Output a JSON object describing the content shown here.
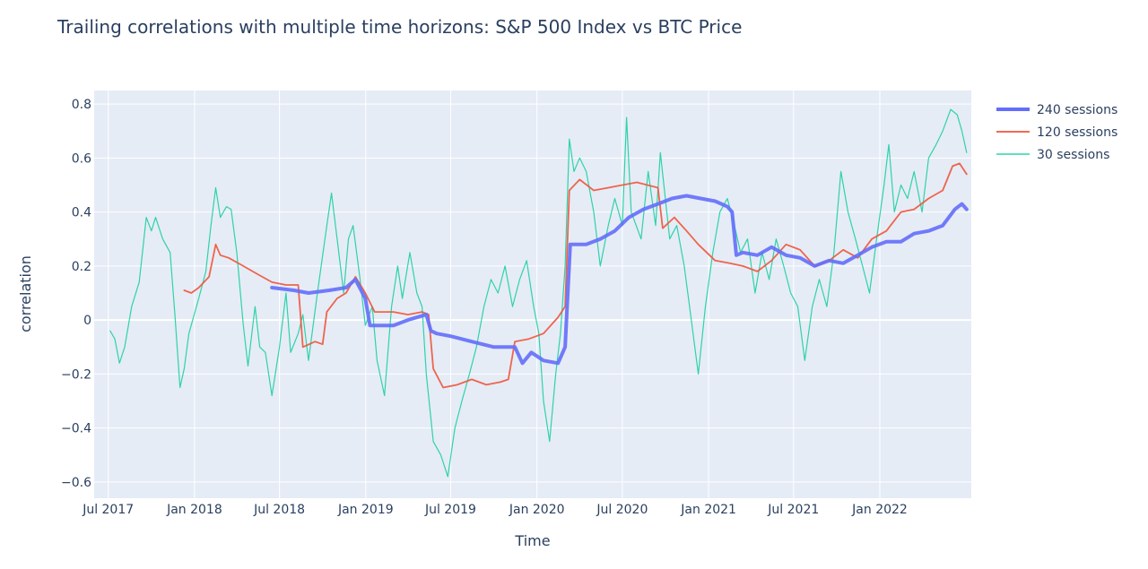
{
  "chart_data": {
    "type": "line",
    "title": "Trailing correlations with multiple time horizons: S&P 500 Index vs BTC Price",
    "xlabel": "Time",
    "ylabel": "correlation",
    "xlim": [
      "2017-06-01",
      "2022-07-15"
    ],
    "ylim": [
      -0.66,
      0.85
    ],
    "x_ticks": [
      {
        "date": "2017-07-01",
        "label": "Jul 2017"
      },
      {
        "date": "2018-01-01",
        "label": "Jan 2018"
      },
      {
        "date": "2018-07-01",
        "label": "Jul 2018"
      },
      {
        "date": "2019-01-01",
        "label": "Jan 2019"
      },
      {
        "date": "2019-07-01",
        "label": "Jul 2019"
      },
      {
        "date": "2020-01-01",
        "label": "Jan 2020"
      },
      {
        "date": "2020-07-01",
        "label": "Jul 2020"
      },
      {
        "date": "2021-01-01",
        "label": "Jan 2021"
      },
      {
        "date": "2021-07-01",
        "label": "Jul 2021"
      },
      {
        "date": "2022-01-01",
        "label": "Jan 2022"
      }
    ],
    "y_ticks": [
      {
        "value": 0.8,
        "label": "0.8"
      },
      {
        "value": 0.6,
        "label": "0.6"
      },
      {
        "value": 0.4,
        "label": "0.4"
      },
      {
        "value": 0.2,
        "label": "0.2"
      },
      {
        "value": 0,
        "label": "0"
      },
      {
        "value": -0.2,
        "label": "−0.2"
      },
      {
        "value": -0.4,
        "label": "−0.4"
      },
      {
        "value": -0.6,
        "label": "−0.6"
      }
    ],
    "grid": true,
    "legend_position": "top-right",
    "colors": {
      "plot_bg": "#e5ecf6",
      "grid": "#ffffff",
      "text": "#2a3f5f"
    },
    "series": [
      {
        "name": "240 sessions",
        "color": "#636efa",
        "width": "thick",
        "points": [
          [
            "2018-06-15",
            0.12
          ],
          [
            "2018-08-01",
            0.11
          ],
          [
            "2018-09-01",
            0.1
          ],
          [
            "2018-10-15",
            0.11
          ],
          [
            "2018-11-20",
            0.12
          ],
          [
            "2018-12-10",
            0.15
          ],
          [
            "2018-12-31",
            0.08
          ],
          [
            "2019-01-10",
            -0.02
          ],
          [
            "2019-03-01",
            -0.02
          ],
          [
            "2019-04-01",
            0.0
          ],
          [
            "2019-05-10",
            0.02
          ],
          [
            "2019-05-20",
            -0.04
          ],
          [
            "2019-06-01",
            -0.05
          ],
          [
            "2019-07-01",
            -0.06
          ],
          [
            "2019-08-15",
            -0.08
          ],
          [
            "2019-10-01",
            -0.1
          ],
          [
            "2019-11-15",
            -0.1
          ],
          [
            "2019-12-01",
            -0.16
          ],
          [
            "2019-12-20",
            -0.12
          ],
          [
            "2020-01-15",
            -0.15
          ],
          [
            "2020-02-15",
            -0.16
          ],
          [
            "2020-03-01",
            -0.1
          ],
          [
            "2020-03-12",
            0.28
          ],
          [
            "2020-04-15",
            0.28
          ],
          [
            "2020-05-15",
            0.3
          ],
          [
            "2020-06-15",
            0.33
          ],
          [
            "2020-07-15",
            0.38
          ],
          [
            "2020-08-15",
            0.41
          ],
          [
            "2020-09-15",
            0.43
          ],
          [
            "2020-10-15",
            0.45
          ],
          [
            "2020-11-15",
            0.46
          ],
          [
            "2020-12-15",
            0.45
          ],
          [
            "2021-01-15",
            0.44
          ],
          [
            "2021-02-10",
            0.42
          ],
          [
            "2021-02-20",
            0.4
          ],
          [
            "2021-03-01",
            0.24
          ],
          [
            "2021-03-15",
            0.25
          ],
          [
            "2021-04-15",
            0.24
          ],
          [
            "2021-05-15",
            0.27
          ],
          [
            "2021-06-15",
            0.24
          ],
          [
            "2021-07-15",
            0.23
          ],
          [
            "2021-08-15",
            0.2
          ],
          [
            "2021-09-15",
            0.22
          ],
          [
            "2021-10-15",
            0.21
          ],
          [
            "2021-11-15",
            0.24
          ],
          [
            "2021-12-15",
            0.27
          ],
          [
            "2022-01-15",
            0.29
          ],
          [
            "2022-02-15",
            0.29
          ],
          [
            "2022-03-15",
            0.32
          ],
          [
            "2022-04-15",
            0.33
          ],
          [
            "2022-05-15",
            0.35
          ],
          [
            "2022-06-10",
            0.41
          ],
          [
            "2022-06-25",
            0.43
          ],
          [
            "2022-07-05",
            0.41
          ]
        ]
      },
      {
        "name": "120 sessions",
        "color": "#ef553b",
        "width": "thin",
        "points": [
          [
            "2017-12-10",
            0.11
          ],
          [
            "2017-12-25",
            0.1
          ],
          [
            "2018-01-10",
            0.12
          ],
          [
            "2018-02-01",
            0.16
          ],
          [
            "2018-02-15",
            0.28
          ],
          [
            "2018-02-25",
            0.24
          ],
          [
            "2018-03-15",
            0.23
          ],
          [
            "2018-04-15",
            0.2
          ],
          [
            "2018-05-15",
            0.17
          ],
          [
            "2018-06-15",
            0.14
          ],
          [
            "2018-07-15",
            0.13
          ],
          [
            "2018-08-10",
            0.13
          ],
          [
            "2018-08-20",
            -0.1
          ],
          [
            "2018-09-15",
            -0.08
          ],
          [
            "2018-10-01",
            -0.09
          ],
          [
            "2018-10-10",
            0.03
          ],
          [
            "2018-11-01",
            0.08
          ],
          [
            "2018-11-20",
            0.1
          ],
          [
            "2018-12-10",
            0.16
          ],
          [
            "2018-12-31",
            0.1
          ],
          [
            "2019-01-20",
            0.03
          ],
          [
            "2019-03-01",
            0.03
          ],
          [
            "2019-04-01",
            0.02
          ],
          [
            "2019-05-01",
            0.03
          ],
          [
            "2019-05-15",
            0.02
          ],
          [
            "2019-05-25",
            -0.18
          ],
          [
            "2019-06-15",
            -0.25
          ],
          [
            "2019-07-15",
            -0.24
          ],
          [
            "2019-08-15",
            -0.22
          ],
          [
            "2019-09-15",
            -0.24
          ],
          [
            "2019-10-15",
            -0.23
          ],
          [
            "2019-11-01",
            -0.22
          ],
          [
            "2019-11-15",
            -0.08
          ],
          [
            "2019-12-15",
            -0.07
          ],
          [
            "2020-01-15",
            -0.05
          ],
          [
            "2020-02-15",
            0.01
          ],
          [
            "2020-03-01",
            0.05
          ],
          [
            "2020-03-10",
            0.48
          ],
          [
            "2020-04-01",
            0.52
          ],
          [
            "2020-05-01",
            0.48
          ],
          [
            "2020-06-01",
            0.49
          ],
          [
            "2020-07-01",
            0.5
          ],
          [
            "2020-08-01",
            0.51
          ],
          [
            "2020-09-15",
            0.49
          ],
          [
            "2020-09-25",
            0.34
          ],
          [
            "2020-10-20",
            0.38
          ],
          [
            "2020-11-15",
            0.33
          ],
          [
            "2020-12-10",
            0.28
          ],
          [
            "2021-01-15",
            0.22
          ],
          [
            "2021-02-15",
            0.21
          ],
          [
            "2021-03-15",
            0.2
          ],
          [
            "2021-04-15",
            0.18
          ],
          [
            "2021-05-15",
            0.22
          ],
          [
            "2021-06-15",
            0.28
          ],
          [
            "2021-07-15",
            0.26
          ],
          [
            "2021-08-15",
            0.2
          ],
          [
            "2021-09-15",
            0.22
          ],
          [
            "2021-10-15",
            0.26
          ],
          [
            "2021-11-15",
            0.23
          ],
          [
            "2021-12-15",
            0.3
          ],
          [
            "2022-01-15",
            0.33
          ],
          [
            "2022-02-15",
            0.4
          ],
          [
            "2022-03-15",
            0.41
          ],
          [
            "2022-04-15",
            0.45
          ],
          [
            "2022-05-15",
            0.48
          ],
          [
            "2022-06-05",
            0.57
          ],
          [
            "2022-06-20",
            0.58
          ],
          [
            "2022-07-05",
            0.54
          ]
        ]
      },
      {
        "name": "30 sessions",
        "color": "#00cc96",
        "width": "hair",
        "points": [
          [
            "2017-07-05",
            -0.04
          ],
          [
            "2017-07-15",
            -0.07
          ],
          [
            "2017-07-25",
            -0.16
          ],
          [
            "2017-08-05",
            -0.1
          ],
          [
            "2017-08-20",
            0.05
          ],
          [
            "2017-09-05",
            0.14
          ],
          [
            "2017-09-20",
            0.38
          ],
          [
            "2017-10-01",
            0.33
          ],
          [
            "2017-10-10",
            0.38
          ],
          [
            "2017-10-25",
            0.3
          ],
          [
            "2017-11-10",
            0.25
          ],
          [
            "2017-11-20",
            0.02
          ],
          [
            "2017-12-01",
            -0.25
          ],
          [
            "2017-12-10",
            -0.18
          ],
          [
            "2017-12-20",
            -0.05
          ],
          [
            "2018-01-10",
            0.08
          ],
          [
            "2018-01-25",
            0.18
          ],
          [
            "2018-02-05",
            0.35
          ],
          [
            "2018-02-15",
            0.49
          ],
          [
            "2018-02-25",
            0.38
          ],
          [
            "2018-03-10",
            0.42
          ],
          [
            "2018-03-20",
            0.41
          ],
          [
            "2018-04-01",
            0.25
          ],
          [
            "2018-04-15",
            -0.02
          ],
          [
            "2018-04-25",
            -0.17
          ],
          [
            "2018-05-10",
            0.05
          ],
          [
            "2018-05-20",
            -0.1
          ],
          [
            "2018-06-01",
            -0.12
          ],
          [
            "2018-06-15",
            -0.28
          ],
          [
            "2018-07-01",
            -0.1
          ],
          [
            "2018-07-15",
            0.1
          ],
          [
            "2018-07-25",
            -0.12
          ],
          [
            "2018-08-10",
            -0.05
          ],
          [
            "2018-08-20",
            0.02
          ],
          [
            "2018-09-01",
            -0.15
          ],
          [
            "2018-09-20",
            0.1
          ],
          [
            "2018-10-10",
            0.35
          ],
          [
            "2018-10-20",
            0.47
          ],
          [
            "2018-11-01",
            0.3
          ],
          [
            "2018-11-15",
            0.1
          ],
          [
            "2018-11-25",
            0.3
          ],
          [
            "2018-12-05",
            0.35
          ],
          [
            "2018-12-20",
            0.15
          ],
          [
            "2018-12-31",
            -0.02
          ],
          [
            "2019-01-15",
            0.05
          ],
          [
            "2019-01-25",
            -0.15
          ],
          [
            "2019-02-10",
            -0.28
          ],
          [
            "2019-02-25",
            0.05
          ],
          [
            "2019-03-10",
            0.2
          ],
          [
            "2019-03-20",
            0.08
          ],
          [
            "2019-04-05",
            0.25
          ],
          [
            "2019-04-20",
            0.1
          ],
          [
            "2019-05-01",
            0.05
          ],
          [
            "2019-05-10",
            -0.2
          ],
          [
            "2019-05-25",
            -0.45
          ],
          [
            "2019-06-10",
            -0.5
          ],
          [
            "2019-06-25",
            -0.58
          ],
          [
            "2019-07-10",
            -0.4
          ],
          [
            "2019-07-25",
            -0.3
          ],
          [
            "2019-08-10",
            -0.2
          ],
          [
            "2019-08-25",
            -0.1
          ],
          [
            "2019-09-10",
            0.05
          ],
          [
            "2019-09-25",
            0.15
          ],
          [
            "2019-10-10",
            0.1
          ],
          [
            "2019-10-25",
            0.2
          ],
          [
            "2019-11-10",
            0.05
          ],
          [
            "2019-11-25",
            0.15
          ],
          [
            "2019-12-10",
            0.22
          ],
          [
            "2019-12-25",
            0.05
          ],
          [
            "2020-01-05",
            -0.05
          ],
          [
            "2020-01-15",
            -0.3
          ],
          [
            "2020-01-28",
            -0.45
          ],
          [
            "2020-02-10",
            -0.2
          ],
          [
            "2020-02-20",
            -0.05
          ],
          [
            "2020-03-01",
            0.2
          ],
          [
            "2020-03-10",
            0.67
          ],
          [
            "2020-03-20",
            0.55
          ],
          [
            "2020-04-01",
            0.6
          ],
          [
            "2020-04-15",
            0.55
          ],
          [
            "2020-05-01",
            0.4
          ],
          [
            "2020-05-15",
            0.2
          ],
          [
            "2020-06-01",
            0.35
          ],
          [
            "2020-06-15",
            0.45
          ],
          [
            "2020-07-01",
            0.35
          ],
          [
            "2020-07-10",
            0.75
          ],
          [
            "2020-07-20",
            0.4
          ],
          [
            "2020-08-10",
            0.3
          ],
          [
            "2020-08-25",
            0.55
          ],
          [
            "2020-09-10",
            0.35
          ],
          [
            "2020-09-20",
            0.62
          ],
          [
            "2020-10-10",
            0.3
          ],
          [
            "2020-10-25",
            0.35
          ],
          [
            "2020-11-10",
            0.2
          ],
          [
            "2020-11-25",
            0.0
          ],
          [
            "2020-12-10",
            -0.2
          ],
          [
            "2020-12-25",
            0.05
          ],
          [
            "2021-01-10",
            0.25
          ],
          [
            "2021-01-25",
            0.4
          ],
          [
            "2021-02-10",
            0.45
          ],
          [
            "2021-02-25",
            0.35
          ],
          [
            "2021-03-10",
            0.25
          ],
          [
            "2021-03-25",
            0.3
          ],
          [
            "2021-04-10",
            0.1
          ],
          [
            "2021-04-25",
            0.25
          ],
          [
            "2021-05-10",
            0.15
          ],
          [
            "2021-05-25",
            0.3
          ],
          [
            "2021-06-10",
            0.2
          ],
          [
            "2021-06-25",
            0.1
          ],
          [
            "2021-07-10",
            0.05
          ],
          [
            "2021-07-25",
            -0.15
          ],
          [
            "2021-08-10",
            0.05
          ],
          [
            "2021-08-25",
            0.15
          ],
          [
            "2021-09-10",
            0.05
          ],
          [
            "2021-09-25",
            0.25
          ],
          [
            "2021-10-10",
            0.55
          ],
          [
            "2021-10-25",
            0.4
          ],
          [
            "2021-11-10",
            0.3
          ],
          [
            "2021-11-25",
            0.2
          ],
          [
            "2021-12-10",
            0.1
          ],
          [
            "2021-12-25",
            0.3
          ],
          [
            "2022-01-10",
            0.5
          ],
          [
            "2022-01-20",
            0.65
          ],
          [
            "2022-02-01",
            0.4
          ],
          [
            "2022-02-15",
            0.5
          ],
          [
            "2022-03-01",
            0.45
          ],
          [
            "2022-03-15",
            0.55
          ],
          [
            "2022-04-01",
            0.4
          ],
          [
            "2022-04-15",
            0.6
          ],
          [
            "2022-05-01",
            0.65
          ],
          [
            "2022-05-15",
            0.7
          ],
          [
            "2022-06-01",
            0.78
          ],
          [
            "2022-06-15",
            0.76
          ],
          [
            "2022-06-25",
            0.7
          ],
          [
            "2022-07-05",
            0.62
          ]
        ]
      }
    ]
  }
}
